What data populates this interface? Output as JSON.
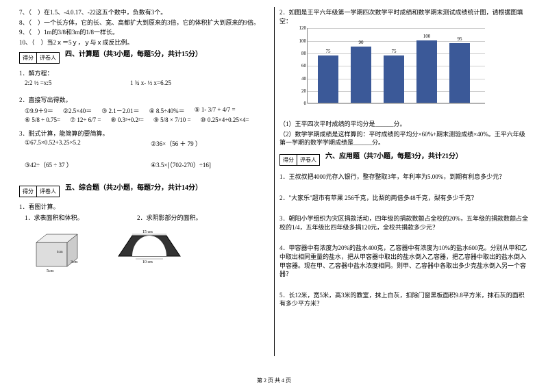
{
  "left": {
    "q7": "7、（　）在1.5、-4.0.17、-22这五个数中，负数有3个。",
    "q8": "8、（　）一个长方体，它的长、宽、高都扩大到原来的3倍，它的体积扩大到原来的9倍。",
    "q9": "9、（　）1m的3/8和3m的1/8一样长。",
    "q10": "10、（　）当2ｘ＝5ｙ，ｙ与ｘ成反比例。",
    "score": {
      "h1": "得分",
      "h2": "评卷人"
    },
    "sec4": "四、计算题（共3小题，每题5分，共计15分）",
    "q41": "1．解方程：",
    "eq1a": "2:2 ½ =x:5",
    "eq1b": "1 ¾ x- ½ x=6.25",
    "q42": "2．直接写出得数。",
    "row1": {
      "a": "①9.9＋9＝",
      "b": "②2.5×40＝",
      "c": "③ 2.1－2.01＝",
      "d": "④ 8.5÷40%＝",
      "e": "⑤ 1- 3/7 + 4/7 ="
    },
    "row2": {
      "a": "⑥ 5/8 ÷ 0.75=",
      "b": "⑦ 12÷ 6/7 =",
      "c": "⑧ 0.3²+0.2²=",
      "d": "⑨ 5/8 × 7/10 =",
      "e": "⑩ 0.25×4÷0.25×4="
    },
    "q43": "3．脱式计算，能简算的要简算。",
    "r3a": "①67.5×0.52+3.25×5.2",
    "r3b": "②36×（56 ＋ 79 ）",
    "r3c": "③42÷（65 ÷ 37 ）",
    "r3d": "④3.5×[（702-270）÷16]",
    "sec5": "五、综合题（共2小题，每题7分，共计14分）",
    "q51": "1．看图计算。",
    "q51a": "1．求表面积和体积。",
    "q51b": "2．求阴影部分的面积。",
    "dim1": "3cm",
    "dim2": "5cm",
    "dim3": "4cm",
    "trap1": "15 cm",
    "trap2": "10 cm"
  },
  "right": {
    "q2": "2．如图是王平六年级第一学期四次数学平时成绩和数学期末测试成绩统计图，请根据图填空：",
    "chart": {
      "values": [
        75,
        90,
        75,
        100,
        95
      ],
      "ymax": 120,
      "ystep": 20,
      "bar_color": "#3b5998",
      "grid_color": "#cccccc"
    },
    "q2a": "（1）王平四次平时成绩的平均分是______分。",
    "q2b": "（2）数学学期成绩是这样算的：平时成绩的平均分×60%+期末测验成绩×40%。王平六年级第一学期的数学学期成绩是______分。",
    "sec6": "六、应用题（共7小题，每题3分，共计21分）",
    "q61": "1．王叔叔把4000元存入银行，整存整取3年，年利率为5.00%，到期有利息多少元？",
    "q62": "2．\"大家乐\"超市有苹果 256千克，比梨的两倍多48千克，梨有多少千克？",
    "q63": "3．朝阳小学组织为灾区捐款活动，四年级的捐款数额占全校的20%，五年级的捐款数额占全校的1/4，五年级比四年级多捐120元，全校共捐款多少元？",
    "q64": "4．甲容器中有浓度为20%的盐水400克，乙容器中有浓度为10%的盐水600克。分别从甲和乙中取出相同重量的盐水，把从甲容器中取出的盐水倒入乙容器，把乙容器中取出的盐水倒入甲容器。现在甲、乙容器中盐水浓度相同。则甲、乙容器中各取出多少克盐水倒入另一个容器？",
    "q65": "5．长12米，宽5米，高3米的教室，抹上白灰，扣除门窗黑板面积9.8平方米，抹石灰的面积有多少平方米？"
  },
  "footer": "第 2 页 共 4 页"
}
